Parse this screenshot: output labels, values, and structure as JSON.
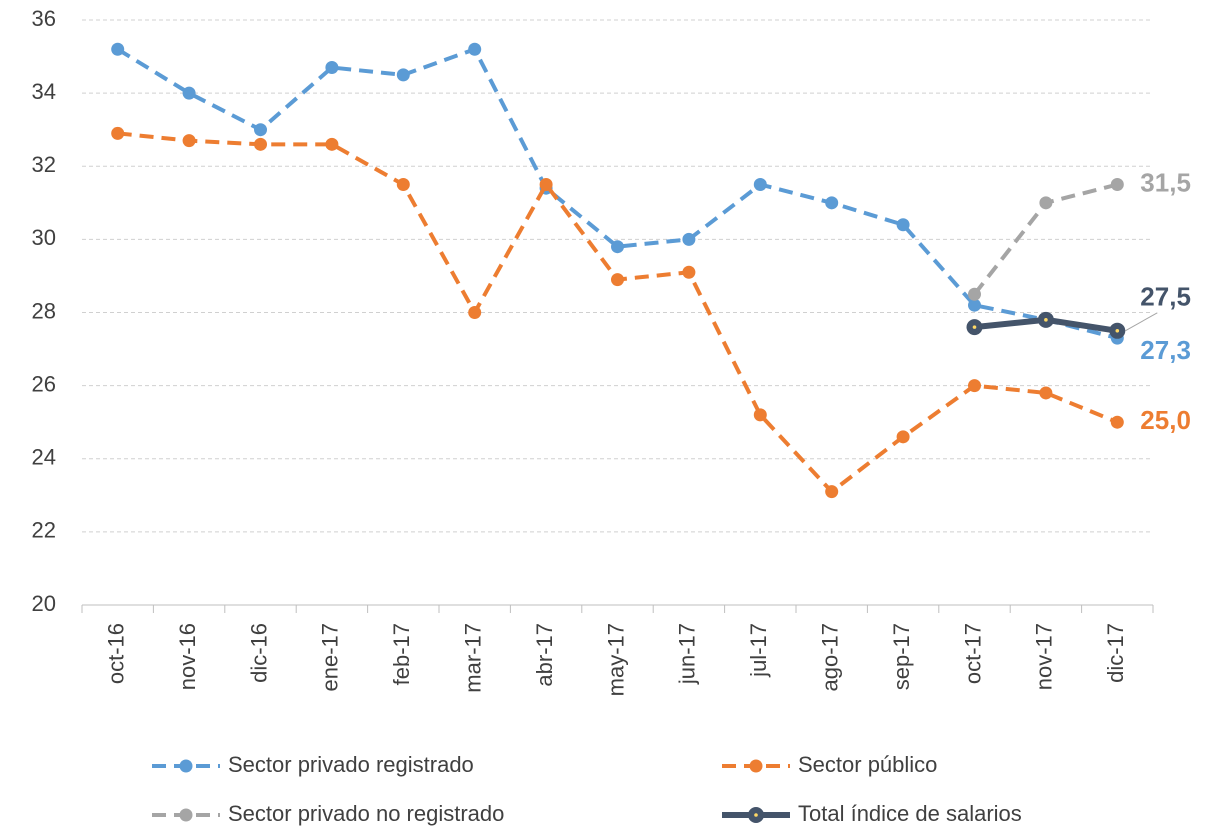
{
  "chart_data": {
    "type": "line",
    "categories": [
      "oct-16",
      "nov-16",
      "dic-16",
      "ene-17",
      "feb-17",
      "mar-17",
      "abr-17",
      "may-17",
      "jun-17",
      "jul-17",
      "ago-17",
      "sep-17",
      "oct-17",
      "nov-17",
      "dic-17"
    ],
    "series": [
      {
        "name": "Sector privado registrado",
        "color": "#5b9bd5",
        "dashed": true,
        "values": [
          35.2,
          34.0,
          33.0,
          34.7,
          34.5,
          35.2,
          31.4,
          29.8,
          30.0,
          31.5,
          31.0,
          30.4,
          28.2,
          27.8,
          27.3
        ],
        "value_labels": [
          null,
          null,
          null,
          null,
          null,
          null,
          null,
          null,
          null,
          null,
          null,
          null,
          null,
          null,
          "27,3"
        ]
      },
      {
        "name": "Sector público",
        "color": "#ed7d31",
        "dashed": true,
        "values": [
          32.9,
          32.7,
          32.6,
          32.6,
          31.5,
          28.0,
          31.5,
          28.9,
          29.1,
          25.2,
          23.1,
          24.6,
          26.0,
          25.8,
          25.0
        ],
        "value_labels": [
          null,
          null,
          null,
          null,
          null,
          null,
          null,
          null,
          null,
          null,
          null,
          null,
          null,
          null,
          "25,0"
        ]
      },
      {
        "name": "Sector privado no registrado",
        "color": "#a5a5a5",
        "dashed": true,
        "values": [
          null,
          null,
          null,
          null,
          null,
          null,
          null,
          null,
          null,
          null,
          null,
          null,
          28.5,
          31.0,
          31.5
        ],
        "value_labels": [
          null,
          null,
          null,
          null,
          null,
          null,
          null,
          null,
          null,
          null,
          null,
          null,
          null,
          null,
          "31,5"
        ]
      },
      {
        "name": "Total índice de salarios",
        "color": "#44546a",
        "dashed": false,
        "values": [
          null,
          null,
          null,
          null,
          null,
          null,
          null,
          null,
          null,
          null,
          null,
          null,
          27.6,
          27.8,
          27.5
        ],
        "value_labels": [
          null,
          null,
          null,
          null,
          null,
          null,
          null,
          null,
          null,
          null,
          null,
          null,
          null,
          null,
          "27,5"
        ]
      }
    ],
    "ylim": [
      20,
      36
    ],
    "yticks": [
      20,
      22,
      24,
      26,
      28,
      30,
      32,
      34,
      36
    ],
    "grid": true
  }
}
